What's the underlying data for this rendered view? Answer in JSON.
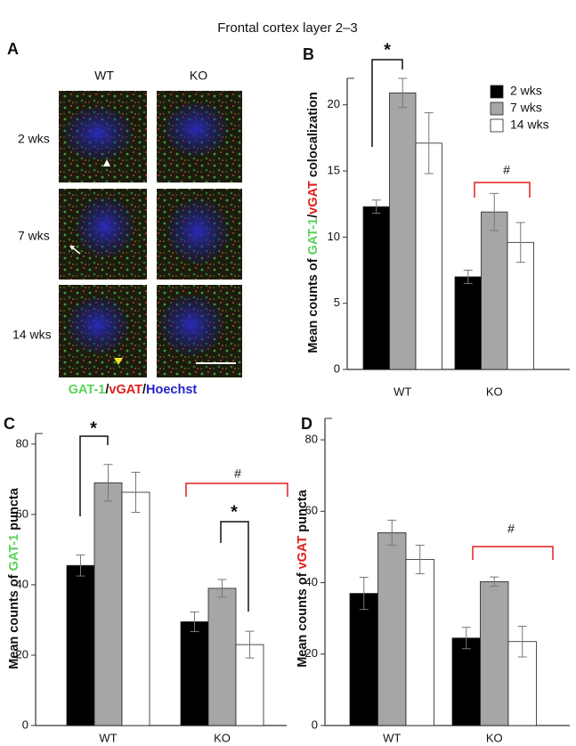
{
  "title": "Frontal cortex layer 2–3",
  "panel_a": {
    "panel": "A",
    "columns": [
      "WT",
      "KO"
    ],
    "rows": [
      "2 wks",
      "7 wks",
      "14 wks"
    ],
    "caption": [
      {
        "text": "GAT-1",
        "color": "#5ad25a"
      },
      {
        "text": "/",
        "color": "#111111"
      },
      {
        "text": "vGAT",
        "color": "#e0201c"
      },
      {
        "text": "/",
        "color": "#111111"
      },
      {
        "text": "Hoechst",
        "color": "#2222cc"
      }
    ]
  },
  "chart_data": [
    {
      "type": "bar",
      "panel": "B",
      "ylabel_parts": [
        {
          "text": "Mean counts of ",
          "color": "#111111"
        },
        {
          "text": "GAT-1",
          "color": "#5ad25a"
        },
        {
          "text": "/",
          "color": "#111111"
        },
        {
          "text": "vGAT",
          "color": "#e0201c"
        },
        {
          "text": " colocalization",
          "color": "#111111"
        }
      ],
      "categories": [
        "WT",
        "KO"
      ],
      "series": [
        {
          "name": "2 wks",
          "color": "#000000",
          "values": [
            12.3,
            7.0
          ],
          "errors": [
            0.5,
            0.5
          ]
        },
        {
          "name": "7 wks",
          "color": "#a6a6a6",
          "values": [
            20.9,
            11.9
          ],
          "errors": [
            1.1,
            1.4
          ]
        },
        {
          "name": "14 wks",
          "color": "#ffffff",
          "values": [
            17.1,
            9.6
          ],
          "errors": [
            2.3,
            1.5
          ]
        }
      ],
      "ylim": [
        0,
        22
      ],
      "yticks": [
        0,
        5,
        10,
        15,
        20
      ],
      "legend": "upper right",
      "annotations": [
        {
          "text": "*",
          "color": "#111111"
        },
        {
          "text": "#",
          "color": "#e0201c"
        }
      ]
    },
    {
      "type": "bar",
      "panel": "C",
      "ylabel_parts": [
        {
          "text": "Mean counts of ",
          "color": "#111111"
        },
        {
          "text": "GAT-1",
          "color": "#5ad25a"
        },
        {
          "text": " puncta",
          "color": "#111111"
        }
      ],
      "categories": [
        "WT",
        "KO"
      ],
      "series": [
        {
          "color": "#000000",
          "values": [
            45.5,
            29.5
          ],
          "errors": [
            3.0,
            2.8
          ]
        },
        {
          "color": "#a6a6a6",
          "values": [
            69.0,
            39.0
          ],
          "errors": [
            5.2,
            2.5
          ]
        },
        {
          "color": "#ffffff",
          "values": [
            66.3,
            23.0
          ],
          "errors": [
            5.7,
            3.8
          ]
        }
      ],
      "ylim": [
        0,
        83
      ],
      "yticks": [
        0,
        20,
        40,
        60,
        80
      ],
      "annotations": [
        {
          "text": "*",
          "color": "#111111"
        },
        {
          "text": "#",
          "color": "#e0201c"
        },
        {
          "text": "*",
          "color": "#111111"
        }
      ]
    },
    {
      "type": "bar",
      "panel": "D",
      "ylabel_parts": [
        {
          "text": "Mean counts of ",
          "color": "#111111"
        },
        {
          "text": "vGAT",
          "color": "#e0201c"
        },
        {
          "text": " puncta",
          "color": "#111111"
        }
      ],
      "categories": [
        "WT",
        "KO"
      ],
      "series": [
        {
          "color": "#000000",
          "values": [
            37.0,
            24.5
          ],
          "errors": [
            4.5,
            3.0
          ]
        },
        {
          "color": "#a6a6a6",
          "values": [
            54.0,
            40.3
          ],
          "errors": [
            3.5,
            1.3
          ]
        },
        {
          "color": "#ffffff",
          "values": [
            46.5,
            23.5
          ],
          "errors": [
            4.0,
            4.3
          ]
        }
      ],
      "ylim": [
        0,
        86
      ],
      "yticks": [
        0,
        20,
        40,
        60,
        80
      ],
      "annotations": [
        {
          "text": "#",
          "color": "#e0201c"
        }
      ]
    }
  ]
}
